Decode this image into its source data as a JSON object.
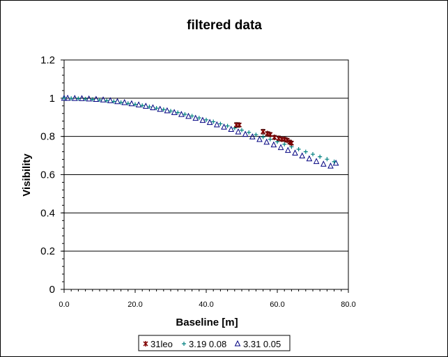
{
  "chart_data": {
    "type": "scatter",
    "title": "filtered data",
    "xlabel": "Baseline [m]",
    "ylabel": "Visibility",
    "xlim": [
      0,
      80
    ],
    "ylim": [
      0,
      1.2
    ],
    "xticks": [
      "0.0",
      "20.0",
      "40.0",
      "60.0",
      "80.0"
    ],
    "yticks": [
      "0",
      "0.2",
      "0.4",
      "0.6",
      "0.8",
      "1",
      "1.2"
    ],
    "ytick_values": [
      0,
      0.2,
      0.4,
      0.6,
      0.8,
      1.0,
      1.2
    ],
    "xtick_values": [
      0,
      20,
      40,
      60,
      80
    ],
    "grid": "horizontal",
    "legend_position": "bottom",
    "series": [
      {
        "name": "31leo",
        "marker": "star",
        "color": "#800000",
        "x": [
          48.5,
          49.3,
          56.0,
          57.2,
          58.0,
          59.2,
          60.4,
          61.3,
          62.0,
          62.8,
          63.5,
          64.0
        ],
        "y": [
          0.86,
          0.86,
          0.825,
          0.815,
          0.81,
          0.795,
          0.79,
          0.785,
          0.785,
          0.78,
          0.77,
          0.765
        ],
        "err": [
          0.012,
          0.01,
          0.012,
          0.01,
          0.01,
          0.01,
          0.012,
          0.01,
          0.01,
          0.01,
          0.01,
          0.01
        ]
      },
      {
        "name": "3.19 0.08",
        "marker": "plus",
        "color": "#008080",
        "x": [
          0,
          2,
          4,
          6,
          8,
          10,
          12,
          14,
          16,
          18,
          20,
          22,
          24,
          26,
          28,
          30,
          32,
          34,
          36,
          38,
          40,
          42,
          44,
          46,
          48,
          50,
          52,
          54,
          56,
          58,
          60,
          62,
          64,
          66,
          68,
          70,
          72,
          74,
          76
        ],
        "y": [
          1.0,
          0.999,
          0.998,
          0.996,
          0.994,
          0.991,
          0.987,
          0.983,
          0.978,
          0.973,
          0.968,
          0.962,
          0.955,
          0.948,
          0.941,
          0.933,
          0.925,
          0.916,
          0.907,
          0.897,
          0.887,
          0.877,
          0.866,
          0.855,
          0.844,
          0.833,
          0.821,
          0.809,
          0.797,
          0.785,
          0.772,
          0.759,
          0.746,
          0.733,
          0.72,
          0.707,
          0.694,
          0.681,
          0.668
        ]
      },
      {
        "name": "3.31 0.05",
        "marker": "triangle",
        "color": "#000080",
        "x": [
          0,
          1,
          3,
          5,
          7,
          9,
          11,
          13,
          15,
          17,
          19,
          21,
          23,
          25,
          27,
          29,
          31,
          33,
          35,
          37,
          39,
          41,
          43,
          45,
          47,
          49,
          51,
          53,
          55,
          57,
          59,
          61,
          63,
          65,
          67,
          69,
          71,
          73,
          75,
          76.5
        ],
        "y": [
          1.0,
          1.0,
          0.999,
          0.998,
          0.996,
          0.994,
          0.991,
          0.987,
          0.982,
          0.977,
          0.971,
          0.965,
          0.958,
          0.95,
          0.942,
          0.934,
          0.925,
          0.915,
          0.905,
          0.895,
          0.884,
          0.873,
          0.861,
          0.849,
          0.837,
          0.824,
          0.811,
          0.798,
          0.784,
          0.77,
          0.756,
          0.742,
          0.727,
          0.713,
          0.698,
          0.683,
          0.669,
          0.655,
          0.645,
          0.66
        ]
      }
    ]
  }
}
